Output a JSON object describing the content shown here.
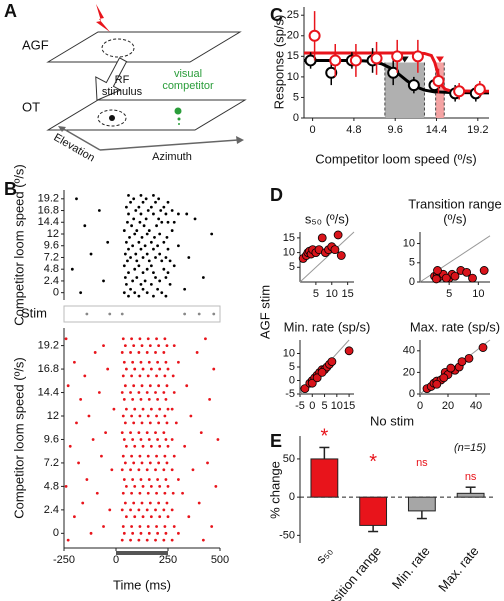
{
  "diagram": {
    "panel": "A",
    "top_layer": "AGF",
    "bottom_layer": "OT",
    "rf_stimulus": [
      "RF",
      "stimulus"
    ],
    "competitor": [
      "visual",
      "competitor"
    ],
    "axis_elevation": "Elevation",
    "axis_azimuth": "Azimuth"
  },
  "chart_data": [
    {
      "type": "raster",
      "panel": "B",
      "ylabel": "Competitor loom speed (º/s)",
      "color": "#000000",
      "xlim": [
        -250,
        500
      ],
      "ylim": [
        -1.5,
        21
      ],
      "yticks": [
        0,
        2.4,
        4.8,
        7.2,
        9.6,
        12,
        14.4,
        16.8,
        19.2
      ],
      "trials": [
        {
          "y": -0.7,
          "times": [
            60,
            110,
            180,
            240
          ]
        },
        {
          "y": 0,
          "times": [
            -170,
            40,
            90,
            150,
            220
          ]
        },
        {
          "y": 0.7,
          "times": [
            70,
            130,
            200,
            330
          ]
        },
        {
          "y": 1.7,
          "times": [
            50,
            120,
            170,
            260
          ]
        },
        {
          "y": 2.4,
          "times": [
            -60,
            80,
            140,
            210
          ]
        },
        {
          "y": 3.1,
          "times": [
            45,
            100,
            190,
            240,
            420
          ]
        },
        {
          "y": 4.1,
          "times": [
            60,
            130,
            180,
            250
          ]
        },
        {
          "y": 4.8,
          "times": [
            -210,
            90,
            150,
            230
          ]
        },
        {
          "y": 5.5,
          "times": [
            40,
            110,
            170,
            280
          ]
        },
        {
          "y": 6.5,
          "times": [
            55,
            100,
            160,
            220,
            260
          ]
        },
        {
          "y": 7.2,
          "times": [
            70,
            130,
            190,
            240,
            350
          ]
        },
        {
          "y": 7.9,
          "times": [
            -120,
            45,
            95,
            150,
            210
          ]
        },
        {
          "y": 8.9,
          "times": [
            60,
            120,
            180,
            250
          ]
        },
        {
          "y": 9.6,
          "times": [
            80,
            140,
            200,
            300
          ]
        },
        {
          "y": 10.3,
          "times": [
            -40,
            50,
            110,
            170,
            230
          ]
        },
        {
          "y": 11.3,
          "times": [
            65,
            125,
            185,
            245
          ]
        },
        {
          "y": 12,
          "times": [
            90,
            150,
            210,
            460
          ]
        },
        {
          "y": 12.7,
          "times": [
            40,
            100,
            160,
            270
          ]
        },
        {
          "y": 13.7,
          "times": [
            -150,
            75,
            135,
            195
          ]
        },
        {
          "y": 14.4,
          "times": [
            55,
            115,
            220,
            250,
            280
          ]
        },
        {
          "y": 15.1,
          "times": [
            85,
            145,
            205,
            380
          ]
        },
        {
          "y": 16.1,
          "times": [
            60,
            120,
            180,
            240,
            300,
            340
          ]
        },
        {
          "y": 16.8,
          "times": [
            -80,
            95,
            155,
            215,
            270
          ]
        },
        {
          "y": 17.5,
          "times": [
            50,
            110,
            170,
            230
          ]
        },
        {
          "y": 18.5,
          "times": [
            70,
            130,
            190,
            250
          ]
        },
        {
          "y": 19.2,
          "times": [
            -190,
            85,
            145,
            205
          ]
        },
        {
          "y": 19.9,
          "times": [
            60,
            120,
            180
          ]
        }
      ]
    },
    {
      "type": "raster",
      "ylabel": "Stim",
      "color": "#888888",
      "xlim": [
        -250,
        500
      ],
      "ylim": [
        -1,
        1
      ],
      "trials": [
        {
          "y": 0,
          "times": [
            -140,
            -30,
            30,
            330,
            400,
            470
          ]
        }
      ]
    },
    {
      "type": "raster",
      "ylabel": "Competitor loom speed (º/s)",
      "xlabel": "Time (ms)",
      "color": "#e8141b",
      "xlim": [
        -250,
        500
      ],
      "ylim": [
        -1.5,
        21
      ],
      "xticks": [
        -250,
        0,
        250,
        500
      ],
      "yticks": [
        0,
        2.4,
        4.8,
        7.2,
        9.6,
        12,
        14.4,
        16.8,
        19.2
      ],
      "stimulus_window": [
        0,
        250
      ],
      "trials": [
        {
          "y": -0.7,
          "times": [
            -230,
            30,
            70,
            110,
            150,
            190,
            230,
            270,
            420
          ]
        },
        {
          "y": 0,
          "times": [
            -120,
            40,
            80,
            120,
            160,
            200,
            240,
            300
          ]
        },
        {
          "y": 0.7,
          "times": [
            -60,
            35,
            75,
            115,
            155,
            195,
            235,
            280,
            460
          ]
        },
        {
          "y": 1.7,
          "times": [
            -200,
            50,
            90,
            130,
            170,
            210,
            250,
            350
          ]
        },
        {
          "y": 2.4,
          "times": [
            -30,
            30,
            70,
            110,
            150,
            190,
            230,
            270
          ]
        },
        {
          "y": 3.1,
          "times": [
            -160,
            45,
            85,
            125,
            165,
            205,
            245,
            400
          ]
        },
        {
          "y": 4.1,
          "times": [
            -90,
            35,
            75,
            115,
            155,
            195,
            235,
            275,
            320
          ]
        },
        {
          "y": 4.8,
          "times": [
            -240,
            50,
            90,
            130,
            170,
            210,
            250,
            480
          ]
        },
        {
          "y": 5.5,
          "times": [
            -140,
            40,
            80,
            120,
            160,
            200,
            240,
            300
          ]
        },
        {
          "y": 6.5,
          "times": [
            -20,
            30,
            70,
            110,
            150,
            190,
            230,
            270,
            370
          ]
        },
        {
          "y": 7.2,
          "times": [
            -180,
            45,
            85,
            125,
            165,
            205,
            245,
            440
          ]
        },
        {
          "y": 7.9,
          "times": [
            -70,
            35,
            75,
            115,
            155,
            195,
            235,
            280
          ]
        },
        {
          "y": 8.9,
          "times": [
            -220,
            50,
            90,
            130,
            170,
            210,
            250,
            330
          ]
        },
        {
          "y": 9.6,
          "times": [
            -110,
            40,
            80,
            120,
            160,
            200,
            240,
            270,
            490
          ]
        },
        {
          "y": 10.3,
          "times": [
            -50,
            30,
            70,
            110,
            150,
            190,
            230,
            410
          ]
        },
        {
          "y": 11.3,
          "times": [
            -190,
            45,
            85,
            125,
            165,
            205,
            245,
            290
          ]
        },
        {
          "y": 12,
          "times": [
            -130,
            35,
            75,
            115,
            155,
            195,
            235,
            360
          ]
        },
        {
          "y": 12.7,
          "times": [
            -10,
            50,
            90,
            130,
            170,
            210,
            250,
            270
          ]
        },
        {
          "y": 13.7,
          "times": [
            -170,
            40,
            80,
            120,
            160,
            200,
            240,
            450
          ]
        },
        {
          "y": 14.4,
          "times": [
            -80,
            30,
            70,
            110,
            150,
            190,
            230,
            280
          ]
        },
        {
          "y": 15.1,
          "times": [
            -230,
            45,
            85,
            125,
            165,
            205,
            245,
            340
          ]
        },
        {
          "y": 16.1,
          "times": [
            -150,
            35,
            75,
            115,
            155,
            195,
            235,
            275
          ]
        },
        {
          "y": 16.8,
          "times": [
            -40,
            50,
            90,
            130,
            170,
            210,
            250,
            470
          ]
        },
        {
          "y": 17.5,
          "times": [
            -200,
            40,
            80,
            120,
            160,
            200,
            240,
            300
          ]
        },
        {
          "y": 18.5,
          "times": [
            -100,
            30,
            70,
            110,
            150,
            190,
            230,
            390
          ]
        },
        {
          "y": 19.2,
          "times": [
            -60,
            45,
            85,
            125,
            165,
            205,
            245,
            280
          ]
        },
        {
          "y": 19.9,
          "times": [
            -240,
            35,
            75,
            115,
            155,
            195,
            235,
            430
          ]
        }
      ]
    },
    {
      "type": "line",
      "panel": "C",
      "ylabel": "Response (sp/s)",
      "xlabel": "Competitor loom speed (º/s)",
      "xlim": [
        -1,
        20.5
      ],
      "ylim": [
        0,
        27
      ],
      "xticks": [
        0,
        4.8,
        9.6,
        14.4,
        19.2
      ],
      "yticks": [
        0,
        5,
        10,
        15,
        20,
        25
      ],
      "x": [
        0,
        2.4,
        4.8,
        7.2,
        9.6,
        12,
        14.4,
        16.8,
        19.2
      ],
      "series": [
        {
          "color": "#000000",
          "values": [
            14,
            11,
            14,
            14,
            11,
            8,
            8,
            6,
            6
          ],
          "errors": [
            2,
            3,
            2,
            3,
            3,
            2,
            2,
            2,
            2
          ]
        },
        {
          "color": "#e8141b",
          "values": [
            20,
            14,
            14,
            14.5,
            15,
            15,
            9,
            6.5,
            7
          ],
          "errors": [
            6,
            4,
            4,
            4,
            4,
            4,
            3,
            2,
            2
          ]
        }
      ],
      "fits": [
        {
          "color": "#000000",
          "x": [
            -1,
            4,
            6,
            7,
            8,
            9,
            10,
            11,
            12,
            13,
            14,
            16,
            20.5
          ],
          "values": [
            14,
            14,
            13.9,
            13.7,
            13.2,
            12.2,
            10.7,
            9,
            7.6,
            6.8,
            6.4,
            6.2,
            6.1
          ]
        },
        {
          "color": "#e8141b",
          "x": [
            -1,
            12,
            13,
            13.8,
            14.2,
            14.6,
            15,
            15.4,
            16,
            20.5
          ],
          "values": [
            15.8,
            15.8,
            15.7,
            15.2,
            13.5,
            10.5,
            8,
            7,
            6.6,
            6.5
          ]
        }
      ],
      "shaded_ranges": [
        {
          "color": "#b0b0b0",
          "x": [
            8.4,
            13
          ]
        },
        {
          "color": "#f4a3a3",
          "x": [
            14.3,
            15.3
          ]
        }
      ]
    },
    {
      "type": "scatter",
      "panel": "D",
      "title": "s₅₀ (º/s)",
      "ylabel": "AGF stim",
      "xlabel": "No stim",
      "xlim": [
        0,
        17
      ],
      "ylim": [
        0,
        17
      ],
      "xticks": [
        5,
        10,
        15
      ],
      "yticks": [
        5,
        10,
        15
      ],
      "x": [
        1,
        2,
        2.5,
        3,
        3.5,
        4,
        5,
        6,
        7,
        8,
        9,
        10,
        11,
        12,
        13
      ],
      "values": [
        8,
        9,
        10,
        10.5,
        9.5,
        11,
        10,
        11,
        15,
        10,
        11,
        12,
        11,
        16,
        9
      ]
    },
    {
      "type": "scatter",
      "title": [
        "Transition range",
        "(º/s)"
      ],
      "xlim": [
        0,
        12
      ],
      "ylim": [
        0,
        13
      ],
      "xticks": [
        5,
        10
      ],
      "yticks": [
        0,
        5,
        10
      ],
      "x": [
        2.5,
        3,
        3,
        3.5,
        4,
        5,
        5.5,
        6,
        7,
        8,
        9,
        11,
        3,
        2.8,
        4.5
      ],
      "values": [
        1.5,
        1,
        2,
        1.5,
        2,
        1,
        2,
        1.5,
        3,
        2.5,
        1,
        3,
        3,
        0.8,
        1
      ]
    },
    {
      "type": "scatter",
      "title": "Min. rate (sp/s)",
      "xlim": [
        -5,
        17
      ],
      "ylim": [
        -5,
        15
      ],
      "xticks": [
        -5,
        0,
        5,
        10,
        15
      ],
      "yticks": [
        -5,
        0,
        5,
        10
      ],
      "x": [
        -3,
        -1,
        0,
        1,
        2,
        3,
        4,
        5,
        6,
        7,
        8,
        0,
        2,
        15,
        4
      ],
      "values": [
        -3,
        -1,
        0,
        1,
        2,
        3,
        4,
        4,
        5,
        6,
        7,
        -1,
        1,
        11,
        3
      ]
    },
    {
      "type": "scatter",
      "title": "Max. rate (sp/s)",
      "xlim": [
        0,
        50
      ],
      "ylim": [
        0,
        50
      ],
      "xticks": [
        0,
        20,
        40
      ],
      "yticks": [
        0,
        20,
        40
      ],
      "x": [
        5,
        8,
        10,
        12,
        15,
        18,
        20,
        25,
        28,
        30,
        35,
        45,
        12,
        17,
        22
      ],
      "values": [
        5,
        7,
        10,
        12,
        13,
        20,
        18,
        22,
        25,
        30,
        33,
        43,
        9,
        15,
        24
      ]
    },
    {
      "type": "bar",
      "panel": "E",
      "ylabel": "% change",
      "note": "(n=15)",
      "ylim": [
        -60,
        80
      ],
      "yticks": [
        -50,
        0,
        50
      ],
      "categories": [
        "s₅₀",
        "Transition range",
        "Min. rate",
        "Max. rate"
      ],
      "values": [
        50,
        -37,
        -18,
        5
      ],
      "errors": [
        15,
        8,
        10,
        8
      ],
      "colors": [
        "#e8141b",
        "#e8141b",
        "#a6a6a6",
        "#a6a6a6"
      ],
      "significance": [
        "*",
        "*",
        "ns",
        "ns"
      ]
    }
  ]
}
